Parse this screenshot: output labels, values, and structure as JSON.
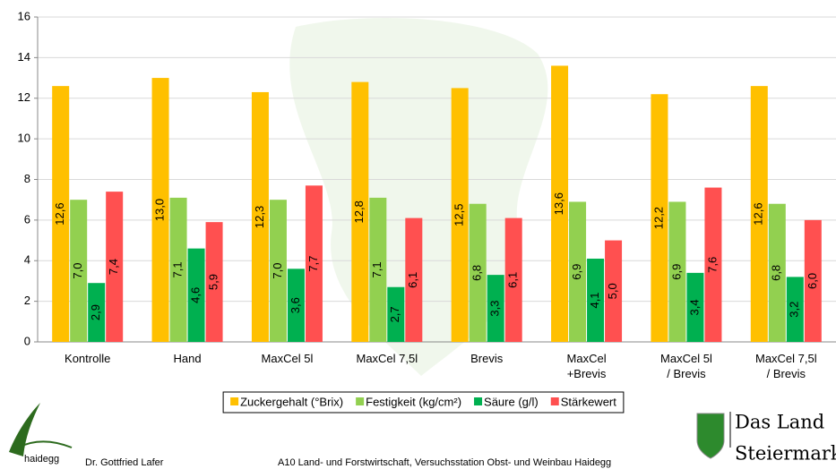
{
  "chart_data": {
    "type": "bar",
    "categories": [
      "Kontrolle",
      "Hand",
      "MaxCel 5l",
      "MaxCel 7,5l",
      "Brevis",
      "MaxCel\n+Brevis",
      "MaxCel 5l\n/ Brevis",
      "MaxCel 7,5l\n/ Brevis"
    ],
    "series": [
      {
        "name": "Zuckergehalt (°Brix)",
        "color": "#ffc000",
        "values": [
          12.6,
          13.0,
          12.3,
          12.8,
          12.5,
          13.6,
          12.2,
          12.6
        ],
        "value_labels": [
          "12,6",
          "13,0",
          "12,3",
          "12,8",
          "12,5",
          "13,6",
          "12,2",
          "12,6"
        ]
      },
      {
        "name": "Festigkeit (kg/cm²)",
        "color": "#92d050",
        "values": [
          7.0,
          7.1,
          7.0,
          7.1,
          6.8,
          6.9,
          6.9,
          6.8
        ],
        "value_labels": [
          "7,0",
          "7,1",
          "7,0",
          "7,1",
          "6,8",
          "6,9",
          "6,9",
          "6,8"
        ]
      },
      {
        "name": "Säure (g/l)",
        "color": "#00b050",
        "values": [
          2.9,
          4.6,
          3.6,
          2.7,
          3.3,
          4.1,
          3.4,
          3.2
        ],
        "value_labels": [
          "2,9",
          "4,6",
          "3,6",
          "2,7",
          "3,3",
          "4,1",
          "3,4",
          "3,2"
        ]
      },
      {
        "name": "Stärkewert",
        "color": "#ff5050",
        "values": [
          7.4,
          5.9,
          7.7,
          6.1,
          6.1,
          5.0,
          7.6,
          6.0
        ],
        "value_labels": [
          "7,4",
          "5,9",
          "7,7",
          "6,1",
          "6,1",
          "5,0",
          "7,6",
          "6,0"
        ]
      }
    ],
    "ylim": [
      0,
      16
    ],
    "yticks": [
      0,
      2,
      4,
      6,
      8,
      10,
      12,
      14,
      16
    ],
    "grid": true,
    "legend": "bottom"
  },
  "footer": {
    "logo_text": "haidegg",
    "author": "Dr. Gottfried Lafer",
    "institution": "A10 Land- und Forstwirtschaft, Versuchsstation Obst- und Weinbau Haidegg",
    "brand_lines": [
      "Das Land",
      "Steiermark"
    ]
  }
}
